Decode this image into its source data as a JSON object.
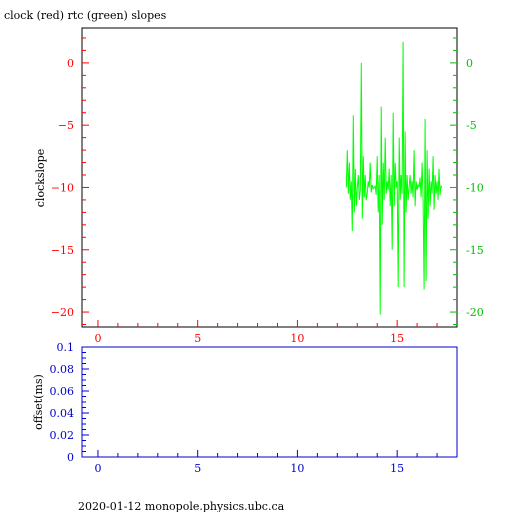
{
  "title": "clock (red) rtc (green) slopes",
  "footer": "2020-01-12  monopole.physics.ubc.ca",
  "colors": {
    "frame": "#000000",
    "left_axis": "#ff0000",
    "right_axis": "#00c000",
    "lower_axis": "#0000cc",
    "series_rtc": "#00ff00"
  },
  "chart_data": [
    {
      "type": "line",
      "title": "clock (red) rtc (green) slopes",
      "xlabel": "",
      "ylabel": "clockslope",
      "xlim": [
        -0.8,
        18.0
      ],
      "ylim": [
        -21.2,
        2.8
      ],
      "x_ticks": [
        0,
        5,
        10,
        15
      ],
      "x_tick_labels": [
        "0",
        "5",
        "10",
        "15"
      ],
      "y_ticks": [
        0,
        -5,
        -10,
        -15,
        -20
      ],
      "y_tick_labels": [
        "0",
        "−5",
        "−10",
        "−15",
        "−20"
      ],
      "y2_tick_labels": [
        "0",
        "-5",
        "-10",
        "-15",
        "-20"
      ],
      "grid": false,
      "series": [
        {
          "color": "#00ff00",
          "x": [
            12.45,
            12.5,
            12.55,
            12.6,
            12.65,
            12.7,
            12.75,
            12.8,
            12.85,
            12.9,
            12.95,
            13.0,
            13.05,
            13.1,
            13.15,
            13.2,
            13.25,
            13.3,
            13.35,
            13.4,
            13.45,
            13.5,
            13.55,
            13.6,
            13.65,
            13.7,
            13.75,
            13.8,
            13.85,
            13.9,
            13.95,
            14.0,
            14.05,
            14.1,
            14.15,
            14.2,
            14.25,
            14.3,
            14.35,
            14.4,
            14.45,
            14.5,
            14.55,
            14.6,
            14.65,
            14.7,
            14.75,
            14.8,
            14.85,
            14.9,
            14.95,
            15.0,
            15.05,
            15.1,
            15.15,
            15.2,
            15.25,
            15.3,
            15.35,
            15.4,
            15.45,
            15.5,
            15.55,
            15.6,
            15.65,
            15.7,
            15.75,
            15.8,
            15.85,
            15.9,
            15.95,
            16.0,
            16.05,
            16.1,
            16.15,
            16.2,
            16.25,
            16.3,
            16.35,
            16.4,
            16.45,
            16.5,
            16.55,
            16.6,
            16.65,
            16.7,
            16.75,
            16.8,
            16.85,
            16.9,
            16.95,
            17.0,
            17.05,
            17.1,
            17.15,
            17.2,
            17.25
          ],
          "y": [
            -10.0,
            -7.0,
            -10.5,
            -8.0,
            -11.0,
            -9.5,
            -13.5,
            -4.2,
            -12.0,
            -8.5,
            -11.5,
            -10.0,
            -9.0,
            -11.0,
            -10.2,
            0.0,
            -12.5,
            -7.5,
            -10.8,
            -9.0,
            -11.0,
            -10.5,
            -9.5,
            -10.0,
            -8.0,
            -10.4,
            -9.8,
            -10.1,
            -10.0,
            -9.9,
            -10.6,
            -7.5,
            -12.0,
            -9.0,
            -20.2,
            -3.5,
            -13.0,
            -8.0,
            -11.0,
            -6.0,
            -10.5,
            -9.5,
            -10.2,
            -8.5,
            -11.5,
            -9.0,
            -15.0,
            -4.0,
            -11.5,
            -8.0,
            -10.0,
            -9.5,
            -18.0,
            -6.0,
            -11.0,
            -9.0,
            -10.5,
            1.7,
            -18.0,
            -5.5,
            -12.0,
            -9.0,
            -11.0,
            -10.0,
            -9.0,
            -10.5,
            -9.5,
            -10.8,
            -7.0,
            -11.5,
            -9.5,
            -10.2,
            -9.8,
            -10.0,
            -9.2,
            -10.8,
            -8.0,
            -11.0,
            -18.2,
            -4.5,
            -17.5,
            -7.0,
            -12.5,
            -8.5,
            -11.5,
            -9.5,
            -10.5,
            -7.5,
            -11.8,
            -9.0,
            -10.5,
            -9.5,
            -11.0,
            -8.5,
            -10.6,
            -9.9,
            -10.0
          ]
        }
      ]
    },
    {
      "type": "line",
      "title": "",
      "xlabel": "",
      "ylabel": "offset(ms)",
      "xlim": [
        -0.8,
        18.0
      ],
      "ylim": [
        0,
        0.1
      ],
      "x_ticks": [
        0,
        5,
        10,
        15
      ],
      "x_tick_labels": [
        "0",
        "5",
        "10",
        "15"
      ],
      "y_ticks": [
        0,
        0.02,
        0.04,
        0.06,
        0.08,
        0.1
      ],
      "y_tick_labels": [
        "0",
        "0.02",
        "0.04",
        "0.06",
        "0.08",
        "0.1"
      ],
      "grid": false,
      "series": []
    }
  ]
}
